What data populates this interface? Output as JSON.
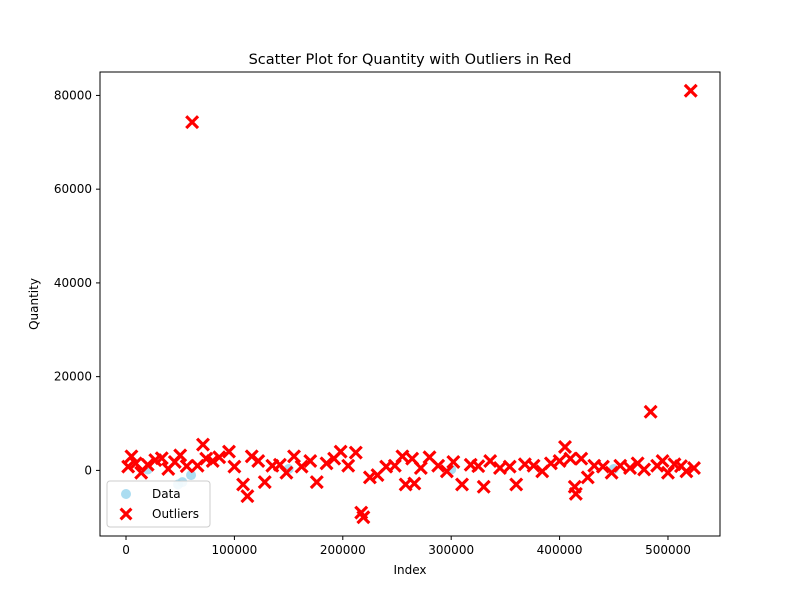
{
  "chart_data": {
    "type": "scatter",
    "title": "Scatter Plot for Quantity with Outliers in Red",
    "xlabel": "Index",
    "ylabel": "Quantity",
    "xlim": [
      -24000,
      548000
    ],
    "ylim": [
      -14000,
      85000
    ],
    "xticks": [
      0,
      100000,
      200000,
      300000,
      400000,
      500000
    ],
    "xtick_labels": [
      "0",
      "100000",
      "200000",
      "300000",
      "400000",
      "500000"
    ],
    "yticks": [
      0,
      20000,
      40000,
      60000,
      80000
    ],
    "ytick_labels": [
      "0",
      "20000",
      "40000",
      "60000",
      "80000"
    ],
    "grid": false,
    "legend_position": "lower-left",
    "series": [
      {
        "name": "Data",
        "color": "#87CEEB",
        "marker": "circle",
        "points": [
          {
            "x": 48000,
            "y": -3000
          },
          {
            "x": 52000,
            "y": -2500
          },
          {
            "x": 60000,
            "y": -1000
          },
          {
            "x": 20000,
            "y": 200
          },
          {
            "x": 150000,
            "y": 300
          },
          {
            "x": 300000,
            "y": 200
          },
          {
            "x": 450000,
            "y": 300
          }
        ]
      },
      {
        "name": "Outliers",
        "color": "#ff0000",
        "marker": "X",
        "points": [
          {
            "x": 2000,
            "y": 800
          },
          {
            "x": 5000,
            "y": 3000
          },
          {
            "x": 9000,
            "y": 1500
          },
          {
            "x": 14000,
            "y": -500
          },
          {
            "x": 20000,
            "y": 1200
          },
          {
            "x": 27000,
            "y": 2200
          },
          {
            "x": 33000,
            "y": 2600
          },
          {
            "x": 39000,
            "y": 300
          },
          {
            "x": 45000,
            "y": 1800
          },
          {
            "x": 50000,
            "y": 3200
          },
          {
            "x": 56000,
            "y": 900
          },
          {
            "x": 61000,
            "y": 74300
          },
          {
            "x": 66000,
            "y": 1000
          },
          {
            "x": 71000,
            "y": 5500
          },
          {
            "x": 74000,
            "y": 2500
          },
          {
            "x": 80000,
            "y": 2000
          },
          {
            "x": 86000,
            "y": 2800
          },
          {
            "x": 95000,
            "y": 4000
          },
          {
            "x": 100000,
            "y": 800
          },
          {
            "x": 108000,
            "y": -3000
          },
          {
            "x": 112000,
            "y": -5500
          },
          {
            "x": 116000,
            "y": 3000
          },
          {
            "x": 122000,
            "y": 2000
          },
          {
            "x": 128000,
            "y": -2500
          },
          {
            "x": 135000,
            "y": 1000
          },
          {
            "x": 142000,
            "y": 1200
          },
          {
            "x": 148000,
            "y": -500
          },
          {
            "x": 155000,
            "y": 3000
          },
          {
            "x": 162000,
            "y": 800
          },
          {
            "x": 170000,
            "y": 2000
          },
          {
            "x": 176000,
            "y": -2500
          },
          {
            "x": 185000,
            "y": 1500
          },
          {
            "x": 192000,
            "y": 2500
          },
          {
            "x": 198000,
            "y": 4000
          },
          {
            "x": 205000,
            "y": 1000
          },
          {
            "x": 212000,
            "y": 3800
          },
          {
            "x": 217000,
            "y": -9000
          },
          {
            "x": 219000,
            "y": -10000
          },
          {
            "x": 225000,
            "y": -1500
          },
          {
            "x": 232000,
            "y": -1000
          },
          {
            "x": 240000,
            "y": 800
          },
          {
            "x": 248000,
            "y": 1000
          },
          {
            "x": 255000,
            "y": 3000
          },
          {
            "x": 258000,
            "y": -3000
          },
          {
            "x": 264000,
            "y": 2500
          },
          {
            "x": 266000,
            "y": -2800
          },
          {
            "x": 272000,
            "y": 500
          },
          {
            "x": 280000,
            "y": 2800
          },
          {
            "x": 288000,
            "y": 1000
          },
          {
            "x": 296000,
            "y": -200
          },
          {
            "x": 302000,
            "y": 1800
          },
          {
            "x": 310000,
            "y": -3000
          },
          {
            "x": 318000,
            "y": 1200
          },
          {
            "x": 325000,
            "y": 900
          },
          {
            "x": 330000,
            "y": -3500
          },
          {
            "x": 336000,
            "y": 2000
          },
          {
            "x": 345000,
            "y": 500
          },
          {
            "x": 354000,
            "y": 800
          },
          {
            "x": 360000,
            "y": -3000
          },
          {
            "x": 368000,
            "y": 1300
          },
          {
            "x": 376000,
            "y": 1000
          },
          {
            "x": 384000,
            "y": -200
          },
          {
            "x": 392000,
            "y": 1500
          },
          {
            "x": 400000,
            "y": 2000
          },
          {
            "x": 405000,
            "y": 5000
          },
          {
            "x": 410000,
            "y": 2500
          },
          {
            "x": 414000,
            "y": -3500
          },
          {
            "x": 415000,
            "y": -5000
          },
          {
            "x": 420000,
            "y": 2500
          },
          {
            "x": 426000,
            "y": -1500
          },
          {
            "x": 432000,
            "y": 1000
          },
          {
            "x": 440000,
            "y": 800
          },
          {
            "x": 448000,
            "y": -500
          },
          {
            "x": 456000,
            "y": 1000
          },
          {
            "x": 465000,
            "y": 500
          },
          {
            "x": 472000,
            "y": 1500
          },
          {
            "x": 478000,
            "y": 200
          },
          {
            "x": 484000,
            "y": 12500
          },
          {
            "x": 490000,
            "y": 1000
          },
          {
            "x": 495000,
            "y": 2000
          },
          {
            "x": 500000,
            "y": -500
          },
          {
            "x": 506000,
            "y": 1300
          },
          {
            "x": 512000,
            "y": 900
          },
          {
            "x": 517000,
            "y": -200
          },
          {
            "x": 521000,
            "y": 81000
          },
          {
            "x": 524000,
            "y": 500
          }
        ]
      }
    ]
  }
}
